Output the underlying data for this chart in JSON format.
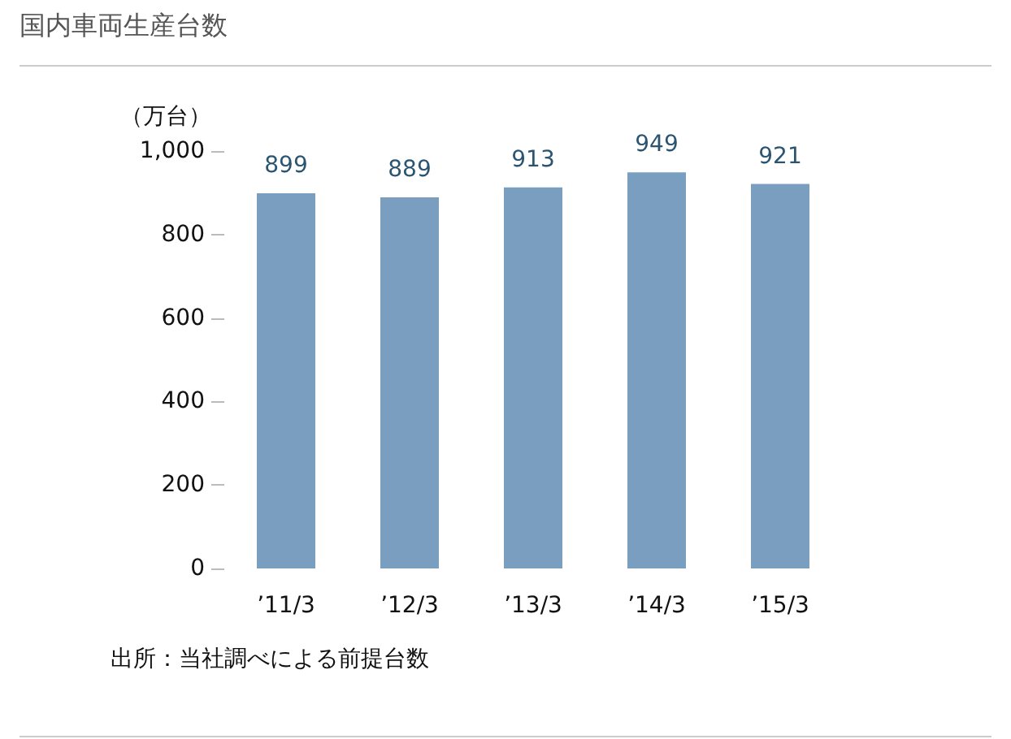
{
  "chart_data": {
    "type": "bar",
    "title": "国内車両生産台数",
    "ylabel": "（万台）",
    "categories": [
      "’11/3",
      "’12/3",
      "’13/3",
      "’14/3",
      "’15/3"
    ],
    "values": [
      899,
      889,
      913,
      949,
      921
    ],
    "color": "#7a9ebf",
    "ylim": [
      0,
      1000
    ],
    "yticks": [
      0,
      200,
      400,
      600,
      800,
      {
        "value": 1000,
        "label": "1,000"
      }
    ],
    "grid": false,
    "data_labels": true,
    "annotations": [
      "出所：当社調べによる前提台数"
    ]
  }
}
